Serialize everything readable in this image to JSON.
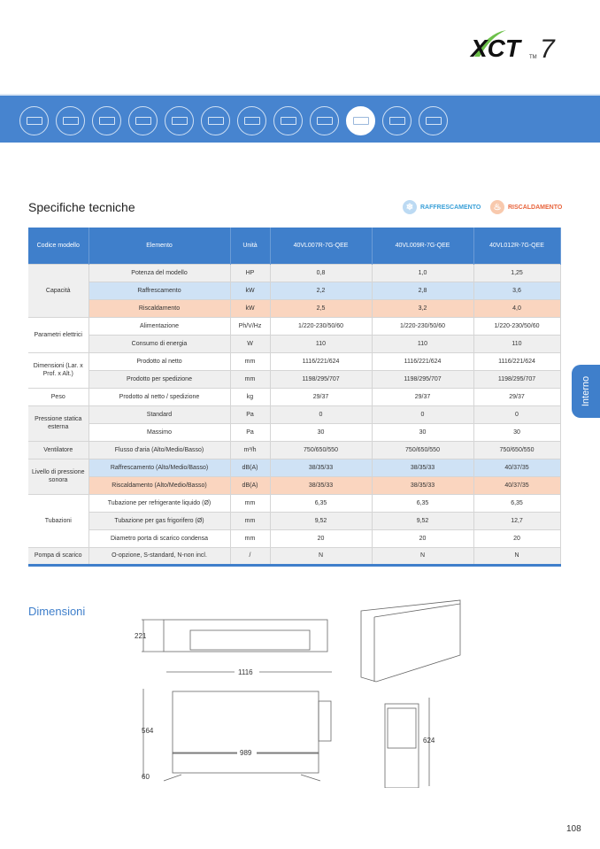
{
  "logo": {
    "text": "XCT",
    "suffix": "7",
    "tm": "TM"
  },
  "category_icons": [
    {
      "name": "cassette-compact-icon"
    },
    {
      "name": "cassette-1way-icon"
    },
    {
      "name": "cassette-4way-icon"
    },
    {
      "name": "cassette-round-icon"
    },
    {
      "name": "duct-slim-icon"
    },
    {
      "name": "duct-medium-icon"
    },
    {
      "name": "duct-high-icon"
    },
    {
      "name": "wall-mounted-icon"
    },
    {
      "name": "floor-ceiling-icon"
    },
    {
      "name": "floor-concealed-icon",
      "selected": true
    },
    {
      "name": "console-icon"
    },
    {
      "name": "ahu-kit-icon"
    }
  ],
  "section_title": "Specifiche tecniche",
  "legend": {
    "cooling": "RAFFRESCAMENTO",
    "heating": "RISCALDAMENTO",
    "cooling_color": "#3aa0d8",
    "heating_color": "#e8643c"
  },
  "table": {
    "headers": [
      "Codice modello",
      "Elemento",
      "Unità",
      "40VL007R-7G-QEE",
      "40VL009R-7G-QEE",
      "40VL012R-7G-QEE"
    ],
    "groups": [
      {
        "label": "Capacità",
        "shade": "grey",
        "rows": [
          {
            "item": "Potenza del modello",
            "unit": "HP",
            "values": [
              "0,8",
              "1,0",
              "1,25"
            ],
            "shade": "grey"
          },
          {
            "item": "Raffrescamento",
            "unit": "kW",
            "values": [
              "2,2",
              "2,8",
              "3,6"
            ],
            "shade": "blue"
          },
          {
            "item": "Riscaldamento",
            "unit": "kW",
            "values": [
              "2,5",
              "3,2",
              "4,0"
            ],
            "shade": "orange"
          }
        ]
      },
      {
        "label": "Parametri elettrici",
        "shade": "white",
        "rows": [
          {
            "item": "Alimentazione",
            "unit": "Ph/V/Hz",
            "values": [
              "1/220-230/50/60",
              "1/220-230/50/60",
              "1/220-230/50/60"
            ],
            "shade": "white"
          },
          {
            "item": "Consumo di energia",
            "unit": "W",
            "values": [
              "110",
              "110",
              "110"
            ],
            "shade": "grey"
          }
        ]
      },
      {
        "label": "Dimensioni (Lar. x Prof. x Alt.)",
        "shade": "white",
        "rows": [
          {
            "item": "Prodotto al netto",
            "unit": "mm",
            "values": [
              "1116/221/624",
              "1116/221/624",
              "1116/221/624"
            ],
            "shade": "white"
          },
          {
            "item": "Prodotto per spedizione",
            "unit": "mm",
            "values": [
              "1198/295/707",
              "1198/295/707",
              "1198/295/707"
            ],
            "shade": "grey"
          }
        ]
      },
      {
        "label": "Peso",
        "shade": "white",
        "rows": [
          {
            "item": "Prodotto al netto / spedizione",
            "unit": "kg",
            "values": [
              "29/37",
              "29/37",
              "29/37"
            ],
            "shade": "white"
          }
        ]
      },
      {
        "label": "Pressione statica esterna",
        "shade": "grey",
        "rows": [
          {
            "item": "Standard",
            "unit": "Pa",
            "values": [
              "0",
              "0",
              "0"
            ],
            "shade": "grey"
          },
          {
            "item": "Massimo",
            "unit": "Pa",
            "values": [
              "30",
              "30",
              "30"
            ],
            "shade": "white"
          }
        ]
      },
      {
        "label": "Ventilatore",
        "shade": "grey",
        "rows": [
          {
            "item": "Flusso d'aria (Alto/Medio/Basso)",
            "unit": "m³/h",
            "values": [
              "750/650/550",
              "750/650/550",
              "750/650/550"
            ],
            "shade": "grey"
          }
        ]
      },
      {
        "label": "Livello di pressione sonora",
        "shade": "grey",
        "rows": [
          {
            "item": "Raffrescamento (Alto/Medio/Basso)",
            "unit": "dB(A)",
            "values": [
              "38/35/33",
              "38/35/33",
              "40/37/35"
            ],
            "shade": "blue"
          },
          {
            "item": "Riscaldamento (Alto/Medio/Basso)",
            "unit": "dB(A)",
            "values": [
              "38/35/33",
              "38/35/33",
              "40/37/35"
            ],
            "shade": "orange"
          }
        ]
      },
      {
        "label": "Tubazioni",
        "shade": "white",
        "rows": [
          {
            "item": "Tubazione per refrigerante liquido (Ø)",
            "unit": "mm",
            "values": [
              "6,35",
              "6,35",
              "6,35"
            ],
            "shade": "white"
          },
          {
            "item": "Tubazione per gas frigorifero (Ø)",
            "unit": "mm",
            "values": [
              "9,52",
              "9,52",
              "12,7"
            ],
            "shade": "grey"
          },
          {
            "item": "Diametro porta di scarico condensa",
            "unit": "mm",
            "values": [
              "20",
              "20",
              "20"
            ],
            "shade": "white"
          }
        ]
      },
      {
        "label": "Pompa di scarico",
        "shade": "grey",
        "rows": [
          {
            "item": "O-opzione, S-standard, N-non incl.",
            "unit": "/",
            "values": [
              "N",
              "N",
              "N"
            ],
            "shade": "grey"
          }
        ]
      }
    ]
  },
  "dimensions": {
    "title": "Dimensioni",
    "height": "221",
    "length": "1116",
    "depth": "564",
    "inner_length": "989",
    "foot": "60",
    "total_height": "624"
  },
  "side_tab": "Interno",
  "page_number": "108"
}
